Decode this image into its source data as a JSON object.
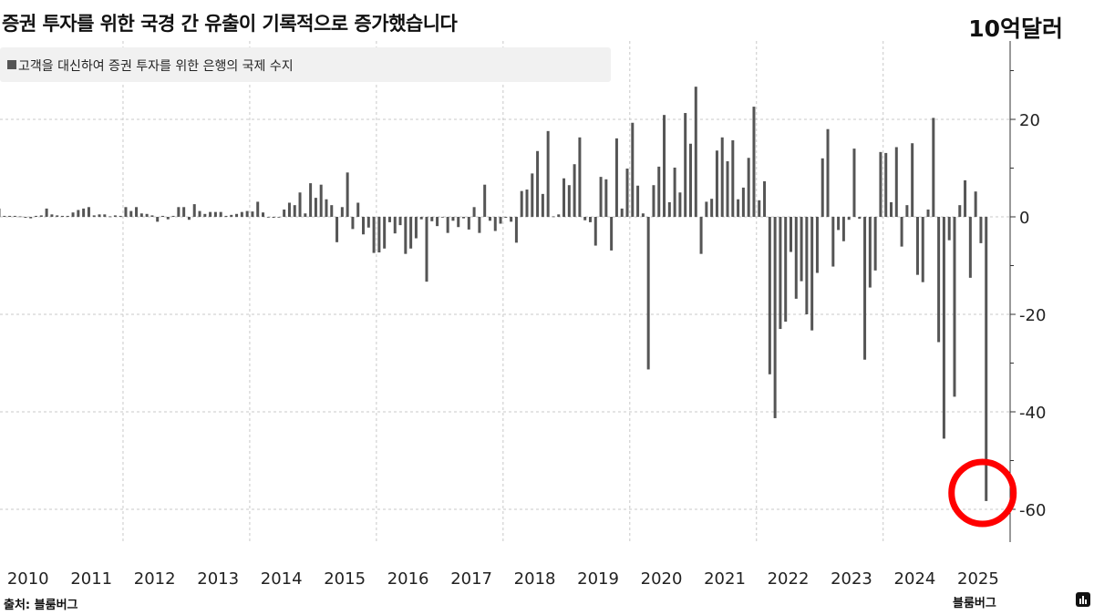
{
  "header": {
    "title": "증권 투자를 위한 국경 간 유출이 기록적으로 증가했습니다",
    "unit": "10억달러"
  },
  "footer": {
    "source": "출처: 블룸버그",
    "brand": "블룸버그",
    "logo_icon": "bloomberg-chart-icon"
  },
  "annotation": {
    "type": "circle",
    "color": "#ff0000",
    "target": "2025-08"
  },
  "chart_data": {
    "type": "bar",
    "title": "증권 투자를 위한 국경 간 유출이 기록적으로 증가했습니다",
    "ylabel": "10억달러",
    "legend": {
      "entries": [
        "고객을 대신하여 증권 투자를 위한 은행의 국제 수지"
      ],
      "placement": "top-left"
    },
    "bar_color": "#555555",
    "ylim": [
      -67,
      36
    ],
    "yticks": [
      20,
      0,
      -20,
      -40,
      -60
    ],
    "xticks": [
      "2010",
      "2011",
      "2012",
      "2013",
      "2014",
      "2015",
      "2016",
      "2017",
      "2018",
      "2019",
      "2020",
      "2021",
      "2022",
      "2023",
      "2024",
      "2025"
    ],
    "grid": true,
    "start": "2010-01",
    "frequency": "monthly",
    "series": [
      {
        "name": "고객을 대신하여 증권 투자를 위한 은행의 국제 수지",
        "values": [
          1.7,
          0.2,
          0.2,
          0.2,
          0.1,
          -0.2,
          -0.3,
          0.2,
          0.3,
          1.7,
          0.5,
          0.3,
          0.2,
          0.2,
          0.9,
          1.4,
          1.7,
          2.0,
          0.3,
          0.5,
          0.5,
          0.1,
          0.3,
          0.2,
          2.0,
          1.2,
          2.0,
          0.7,
          0.6,
          0.3,
          -1.0,
          0.2,
          -0.5,
          0.2,
          2.0,
          2.0,
          -0.6,
          2.6,
          1.2,
          0.6,
          1.0,
          1.0,
          1.0,
          0.2,
          0.4,
          0.6,
          1.0,
          1.2,
          1.1,
          3.1,
          0.9,
          0,
          -0.2,
          -0.1,
          1.5,
          2.9,
          2.4,
          5.0,
          0.7,
          6.9,
          3.9,
          6.6,
          3.6,
          2.4,
          -5.2,
          2.0,
          9.1,
          -2.5,
          2.9,
          -3.6,
          -2.2,
          -7.4,
          -7.3,
          -6.5,
          -1.1,
          -3.4,
          -1.7,
          -7.6,
          -6.5,
          -4.4,
          -0.5,
          -13.3,
          -0.9,
          -1.9,
          -0.1,
          -3.3,
          -0.8,
          -2.1,
          -0.3,
          -2.6,
          2.0,
          -3.3,
          6.6,
          -0.8,
          -2.9,
          -1.4,
          -0.2,
          -1.0,
          -5.3,
          5.3,
          5.6,
          8.9,
          13.5,
          4.7,
          17.6,
          0.1,
          0.5,
          7.9,
          6.5,
          10.8,
          16.3,
          -0.7,
          -1.1,
          -5.9,
          8.2,
          7.7,
          -6.9,
          16.1,
          1.7,
          9.9,
          19.3,
          6.4,
          0.7,
          -31.3,
          6.5,
          10.3,
          20.9,
          3.0,
          10.1,
          5.0,
          21.3,
          15.0,
          26.7,
          -7.6,
          3.1,
          3.7,
          13.6,
          16.3,
          11.4,
          15.7,
          3.6,
          6.0,
          12.1,
          22.6,
          3.4,
          7.3,
          -32.3,
          -41.3,
          -23.0,
          -21.5,
          -7.2,
          -16.8,
          -13.2,
          -20.0,
          -23.3,
          -11.5,
          12.0,
          18.0,
          -10.2,
          -2.7,
          -5.0,
          -0.6,
          14.0,
          -0.4,
          -29.3,
          -14.5,
          -11.0,
          13.3,
          13.1,
          3.0,
          14.3,
          -6.1,
          2.4,
          15.1,
          -11.9,
          -13.4,
          1.5,
          20.3,
          -25.7,
          -45.5,
          -4.8,
          -36.9,
          2.4,
          7.5,
          -12.5,
          5.2,
          -5.4,
          -58.3
        ]
      }
    ]
  }
}
